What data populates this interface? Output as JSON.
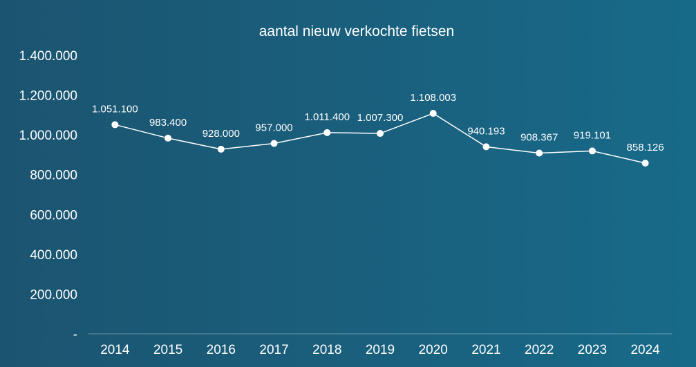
{
  "chart_data": {
    "type": "line",
    "title": "aantal nieuw verkochte fietsen",
    "categories": [
      "2014",
      "2015",
      "2016",
      "2017",
      "2018",
      "2019",
      "2020",
      "2021",
      "2022",
      "2023",
      "2024"
    ],
    "values": [
      1051100,
      983400,
      928000,
      957000,
      1011400,
      1007300,
      1108003,
      940193,
      908367,
      919101,
      858126
    ],
    "data_labels": [
      "1.051.100",
      "983.400",
      "928.000",
      "957.000",
      "1.011.400",
      "1.007.300",
      "1.108.003",
      "940.193",
      "908.367",
      "919.101",
      "858.126"
    ],
    "ylim": [
      0,
      1400000
    ],
    "y_ticks": [
      0,
      200000,
      400000,
      600000,
      800000,
      1000000,
      1200000,
      1400000
    ],
    "y_tick_labels": [
      "-",
      "200.000",
      "400.000",
      "600.000",
      "800.000",
      "1.000.000",
      "1.200.000",
      "1.400.000"
    ],
    "grid": false,
    "line_color": "#ffffff",
    "text_color": "#ffffff"
  }
}
